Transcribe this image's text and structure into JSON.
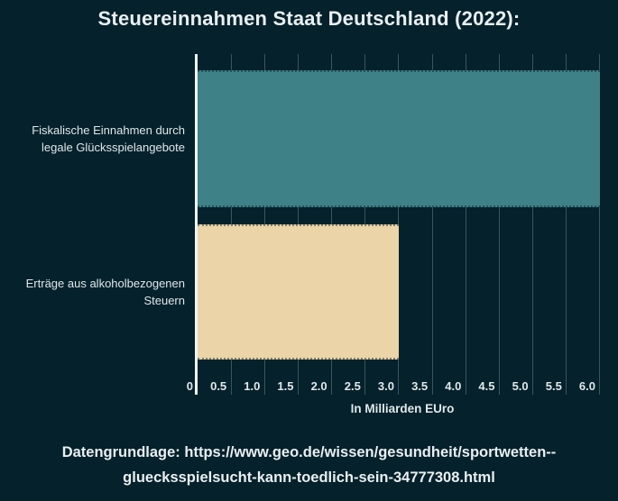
{
  "title": "Steuereinnahmen Staat Deutschland (2022):",
  "chart_data": {
    "type": "bar",
    "orientation": "horizontal",
    "title": "Steuereinnahmen Staat Deutschland (2022):",
    "categories": [
      "Fiskalische Einnahmen durch legale Glücksspielangebote",
      "Erträge aus alkoholbezogenen Steuern"
    ],
    "categories_lines": [
      [
        "Fiskalische Einnahmen durch",
        "legale Glücksspielangebote"
      ],
      [
        "Erträge aus alkoholbezogenen",
        "Steuern"
      ]
    ],
    "values": [
      6.0,
      3.0
    ],
    "bar_colors": [
      "#3e8187",
      "#ebd4a7"
    ],
    "xlabel": "In Milliarden EUro",
    "ylabel": "",
    "xlim": [
      0,
      6.1
    ],
    "xticks": [
      0,
      0.5,
      1.0,
      1.5,
      2.0,
      2.5,
      3.0,
      3.5,
      4.0,
      4.5,
      5.0,
      5.5,
      6.0
    ],
    "xtick_labels": [
      "0",
      "0.5",
      "1.0",
      "1.5",
      "2.0",
      "2.5",
      "3.0",
      "3.5",
      "4.0",
      "4.5",
      "5.0",
      "5.5",
      "6.0"
    ],
    "grid": true,
    "legend": false
  },
  "caption": "Datengrundlage: https://www.geo.de/wissen/gesundheit/sportwetten--gluecksspielsucht-kann-toedlich-sein-34777308.html",
  "colors": {
    "background": "#05212b",
    "text": "#e9eff1",
    "bar1": "#3e8187",
    "bar2": "#ebd4a7",
    "gridline": "rgba(222,236,240,0.26)",
    "axis_line": "#eef4f5"
  }
}
